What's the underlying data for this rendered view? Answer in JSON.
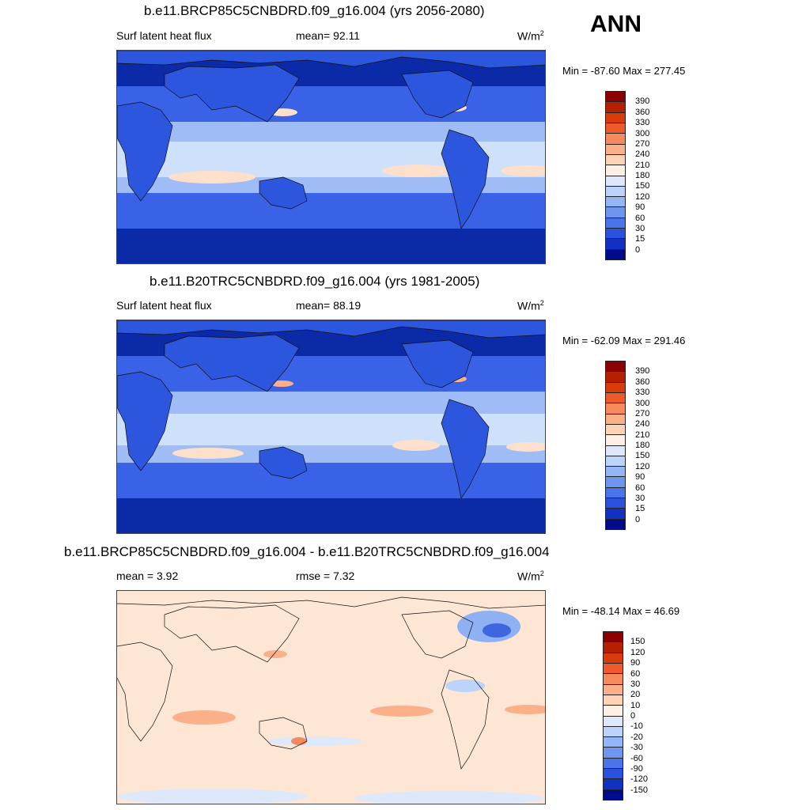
{
  "ann_label": "ANN",
  "panels": [
    {
      "title": "b.e11.BRCP85C5CNBDRD.f09_g16.004 (yrs 2056-2080)",
      "left_label": "Surf latent heat flux",
      "mid_label": "mean=  92.11",
      "units": "W/m",
      "units_sup": "2",
      "minmax": "Min = -87.60 Max = 277.45",
      "colorbar": {
        "labels": [
          "390",
          "360",
          "330",
          "300",
          "270",
          "240",
          "210",
          "180",
          "150",
          "120",
          "90",
          "60",
          "30",
          "15",
          "0"
        ],
        "colors": [
          "#8b0000",
          "#b52000",
          "#d93c0a",
          "#ef5a2a",
          "#f78a5d",
          "#fbb08a",
          "#fdd3b6",
          "#fdf0e4",
          "#dde9fb",
          "#bcd3fb",
          "#95b6f6",
          "#6e96ef",
          "#4a74ea",
          "#2a52de",
          "#1230c2",
          "#000b8c"
        ]
      }
    },
    {
      "title": "b.e11.B20TRC5CNBDRD.f09_g16.004 (yrs 1981-2005)",
      "left_label": "Surf latent heat flux",
      "mid_label": "mean=  88.19",
      "units": "W/m",
      "units_sup": "2",
      "minmax": "Min = -62.09 Max = 291.46",
      "colorbar": {
        "labels": [
          "390",
          "360",
          "330",
          "300",
          "270",
          "240",
          "210",
          "180",
          "150",
          "120",
          "90",
          "60",
          "30",
          "15",
          "0"
        ],
        "colors": [
          "#8b0000",
          "#b52000",
          "#d93c0a",
          "#ef5a2a",
          "#f78a5d",
          "#fbb08a",
          "#fdd3b6",
          "#fdf0e4",
          "#dde9fb",
          "#bcd3fb",
          "#95b6f6",
          "#6e96ef",
          "#4a74ea",
          "#2a52de",
          "#1230c2",
          "#000b8c"
        ]
      }
    },
    {
      "title": "b.e11.BRCP85C5CNBDRD.f09_g16.004 - b.e11.B20TRC5CNBDRD.f09_g16.004",
      "left_label": "mean =   3.92",
      "mid_label": "rmse =   7.32",
      "units": "W/m",
      "units_sup": "2",
      "minmax": "Min = -48.14 Max =  46.69",
      "colorbar": {
        "labels": [
          "150",
          "120",
          "90",
          "60",
          "30",
          "20",
          "10",
          "0",
          "-10",
          "-20",
          "-30",
          "-60",
          "-90",
          "-120",
          "-150"
        ],
        "colors": [
          "#8b0000",
          "#b52000",
          "#d93c0a",
          "#ef5a2a",
          "#f78a5d",
          "#fbb08a",
          "#fdd3b6",
          "#fdf0e4",
          "#dde9fb",
          "#bcd3fb",
          "#95b6f6",
          "#6e96ef",
          "#4a74ea",
          "#2a52de",
          "#1230c2",
          "#000b8c"
        ]
      }
    }
  ]
}
